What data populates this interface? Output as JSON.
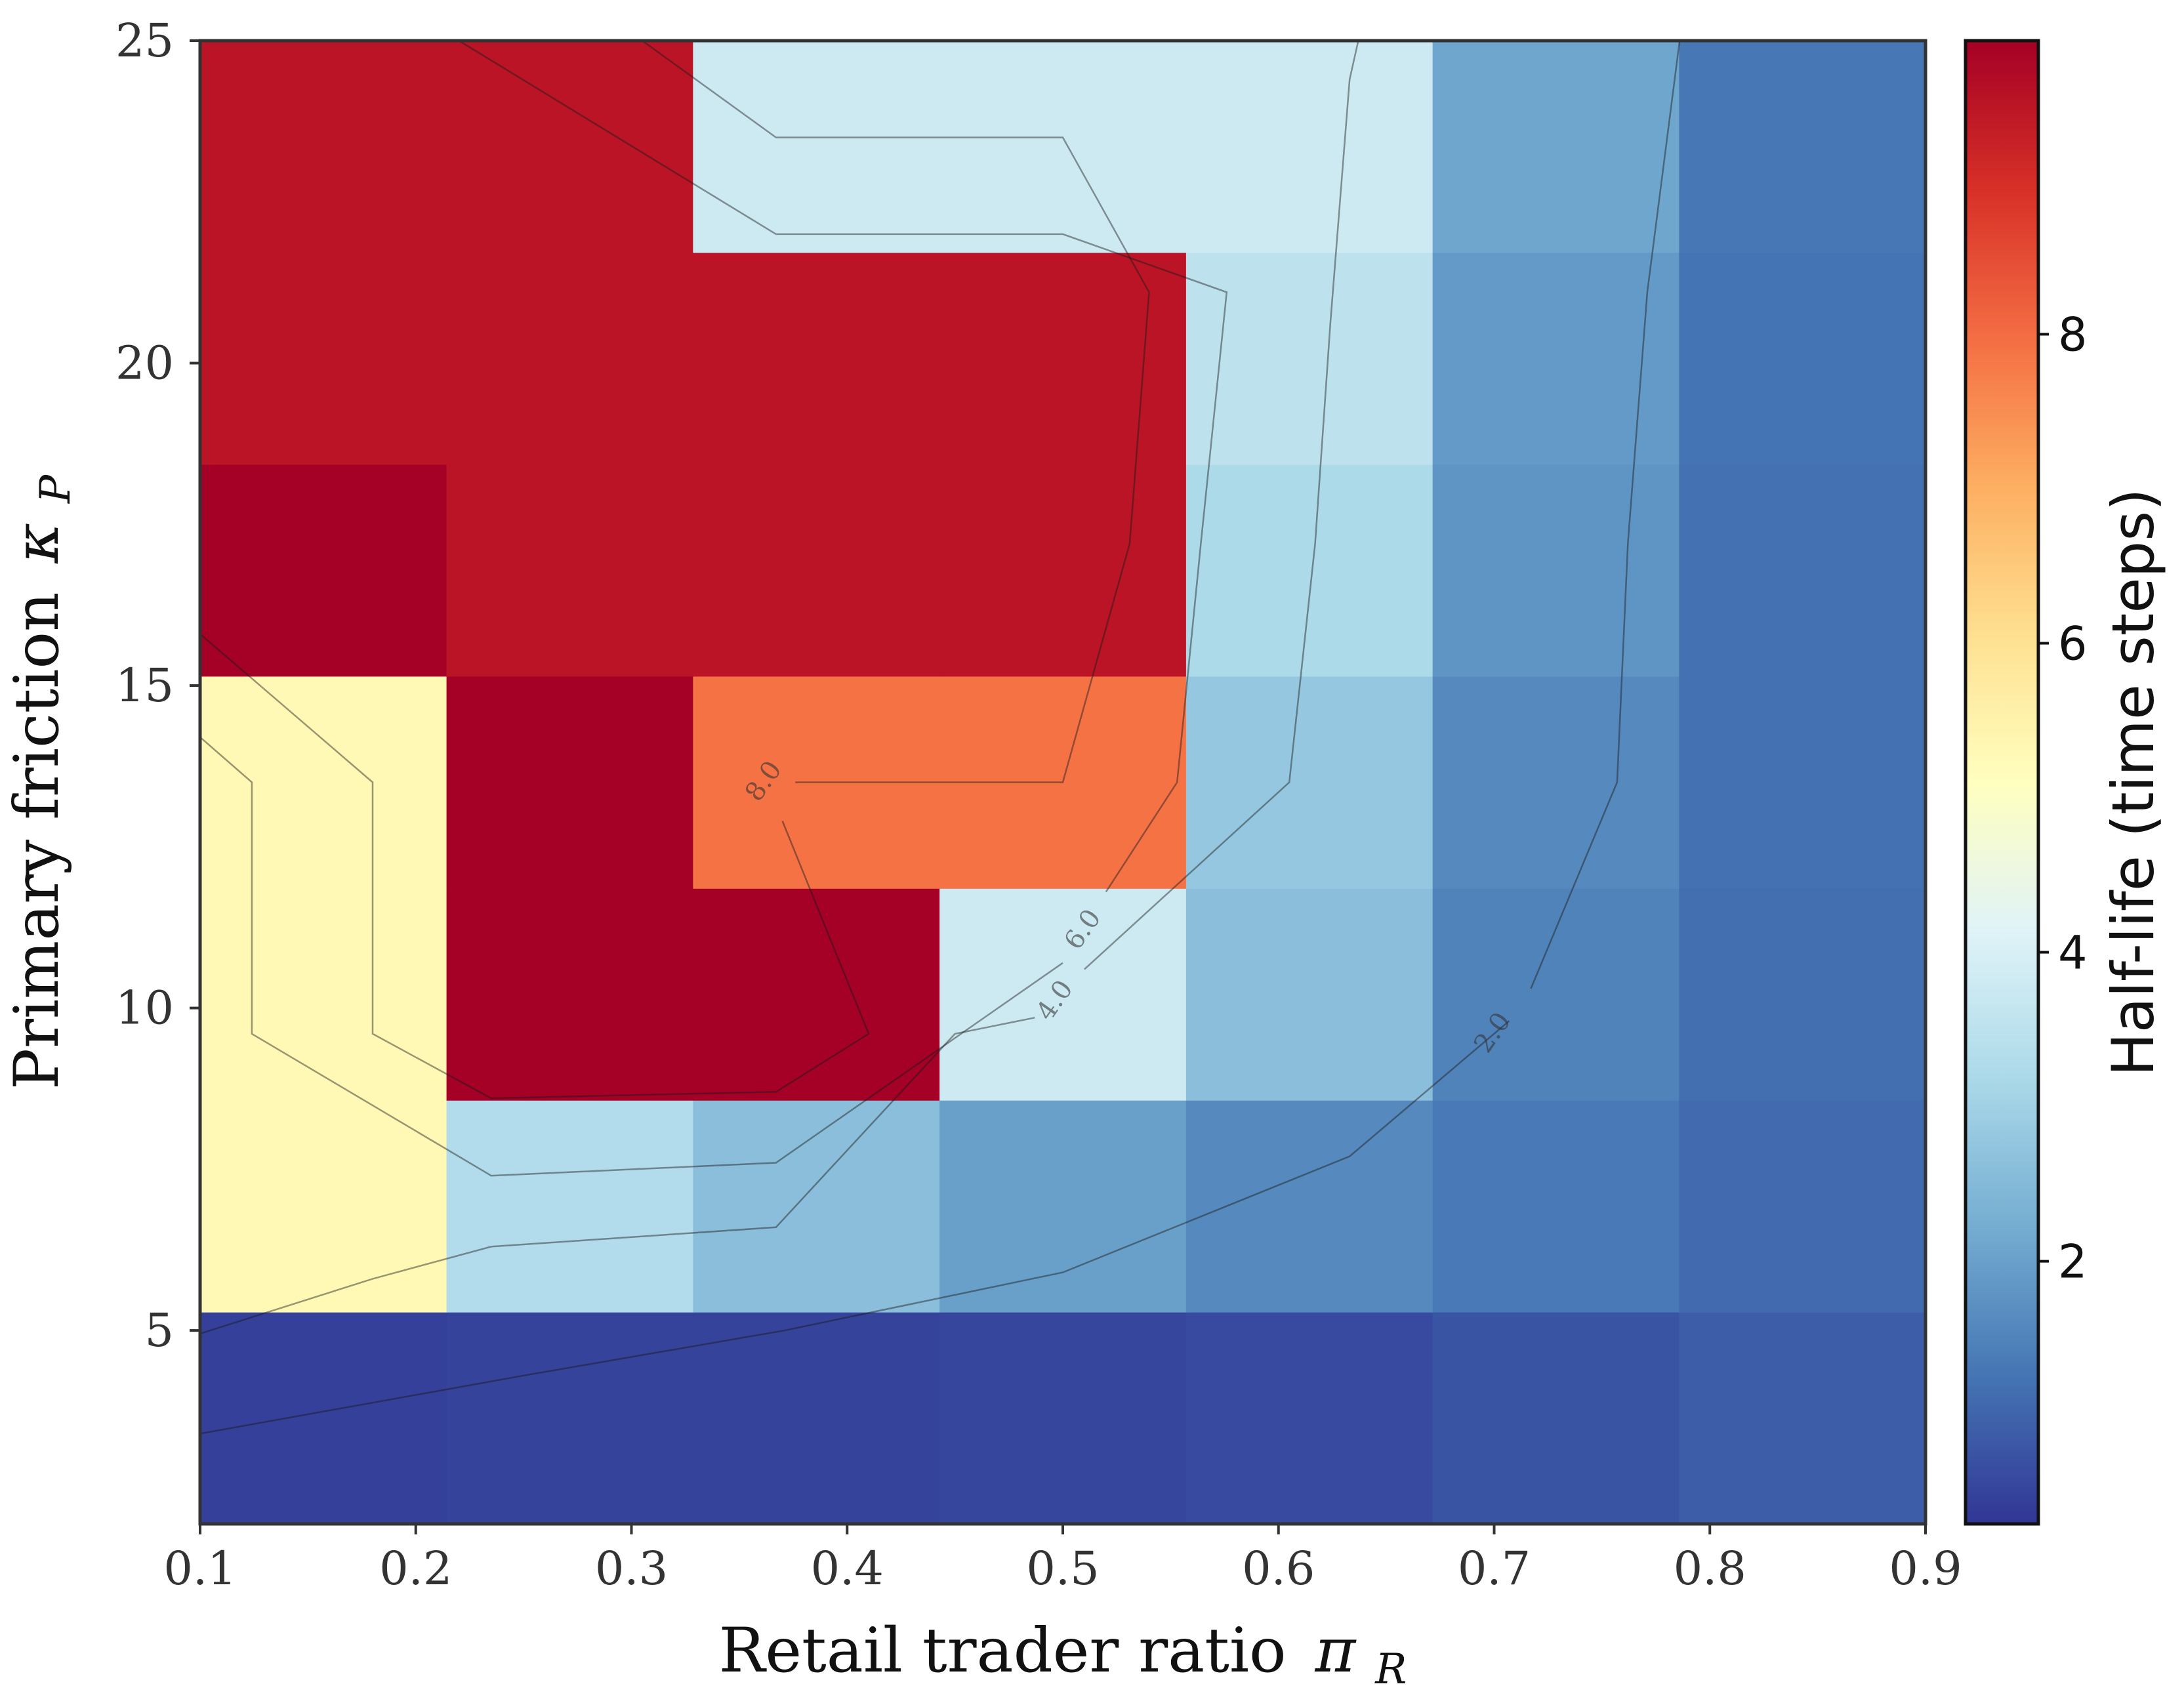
{
  "chart_data": {
    "type": "heatmap",
    "xlabel": "Retail trader ratio",
    "xlabel_symbol": "π",
    "xlabel_subscript": "R",
    "ylabel": "Primary friction",
    "ylabel_symbol": "κ",
    "ylabel_subscript": "P",
    "xlim": [
      0.1,
      0.9
    ],
    "ylim": [
      2.0,
      25.0
    ],
    "x_ticks": [
      "0.1",
      "0.2",
      "0.3",
      "0.4",
      "0.5",
      "0.6",
      "0.7",
      "0.8",
      "0.9"
    ],
    "y_ticks": [
      "5",
      "10",
      "15",
      "20",
      "25"
    ],
    "x_centers": [
      0.1571,
      0.2714,
      0.3857,
      0.5,
      0.6143,
      0.7286,
      0.8429
    ],
    "y_centers": [
      3.64,
      6.93,
      10.21,
      13.5,
      16.79,
      20.07,
      23.36
    ],
    "values": [
      [
        0.45,
        0.5,
        0.5,
        0.55,
        0.6,
        0.75,
        0.9
      ],
      [
        5.3,
        3.3,
        2.6,
        2.0,
        1.6,
        1.35,
        1.1
      ],
      [
        5.3,
        9.9,
        9.9,
        3.8,
        2.6,
        1.5,
        1.15
      ],
      [
        5.3,
        9.9,
        7.9,
        7.9,
        2.8,
        1.6,
        1.2
      ],
      [
        9.9,
        9.5,
        9.5,
        9.5,
        3.2,
        1.8,
        1.2
      ],
      [
        9.5,
        9.5,
        9.5,
        9.5,
        3.5,
        1.9,
        1.25
      ],
      [
        9.5,
        9.5,
        3.8,
        3.8,
        3.8,
        2.1,
        1.3
      ]
    ],
    "colorbar": {
      "label": "Half-life (time steps)",
      "vmin": 0.3,
      "vmax": 9.9,
      "ticks": [
        "2",
        "4",
        "6",
        "8"
      ],
      "colormap": "RdYlBu_r"
    },
    "contours": [
      {
        "level": 2.0,
        "label": "2.0",
        "label_at": [
          0.7,
          9.6
        ],
        "paths": [
          [
            [
              0.1,
              3.4
            ],
            [
              0.25,
              4.3
            ],
            [
              0.371,
              5.0
            ],
            [
              0.5,
              5.9
            ],
            [
              0.633,
              7.7
            ],
            [
              0.707,
              9.8
            ]
          ],
          [
            [
              0.717,
              10.3
            ],
            [
              0.757,
              13.5
            ],
            [
              0.762,
              17.2
            ],
            [
              0.771,
              21.1
            ],
            [
              0.786,
              25.0
            ]
          ]
        ]
      },
      {
        "level": 4.0,
        "label": "4.0",
        "label_at": [
          0.497,
          10.1
        ],
        "paths": [
          [
            [
              0.1,
              4.95
            ],
            [
              0.18,
              5.8
            ],
            [
              0.235,
              6.3
            ],
            [
              0.367,
              6.6
            ],
            [
              0.45,
              9.6
            ],
            [
              0.487,
              9.85
            ]
          ],
          [
            [
              0.51,
              10.6
            ],
            [
              0.605,
              13.5
            ],
            [
              0.617,
              17.2
            ],
            [
              0.624,
              20.6
            ],
            [
              0.633,
              24.4
            ],
            [
              0.637,
              25.0
            ]
          ]
        ]
      },
      {
        "level": 6.0,
        "label": "6.0",
        "label_at": [
          0.51,
          11.2
        ],
        "paths": [
          [
            [
              0.1,
              14.2
            ],
            [
              0.124,
              13.5
            ],
            [
              0.124,
              9.6
            ],
            [
              0.235,
              7.4
            ],
            [
              0.367,
              7.6
            ],
            [
              0.5,
              10.7
            ]
          ],
          [
            [
              0.52,
              11.8
            ],
            [
              0.553,
              13.5
            ],
            [
              0.564,
              17.2
            ],
            [
              0.576,
              21.1
            ],
            [
              0.5,
              22.0
            ],
            [
              0.367,
              22.0
            ],
            [
              0.22,
              25.0
            ]
          ]
        ]
      },
      {
        "level": 8.0,
        "label": "8.0",
        "label_at": [
          0.362,
          13.5
        ],
        "paths": [
          [
            [
              0.1,
              15.8
            ],
            [
              0.18,
              13.5
            ],
            [
              0.18,
              9.6
            ],
            [
              0.235,
              8.6
            ],
            [
              0.367,
              8.7
            ],
            [
              0.41,
              9.6
            ],
            [
              0.37,
              12.9
            ]
          ],
          [
            [
              0.376,
              13.5
            ],
            [
              0.5,
              13.5
            ],
            [
              0.531,
              17.2
            ],
            [
              0.54,
              21.1
            ],
            [
              0.5,
              23.5
            ],
            [
              0.367,
              23.5
            ],
            [
              0.305,
              25.0
            ]
          ]
        ]
      }
    ]
  }
}
